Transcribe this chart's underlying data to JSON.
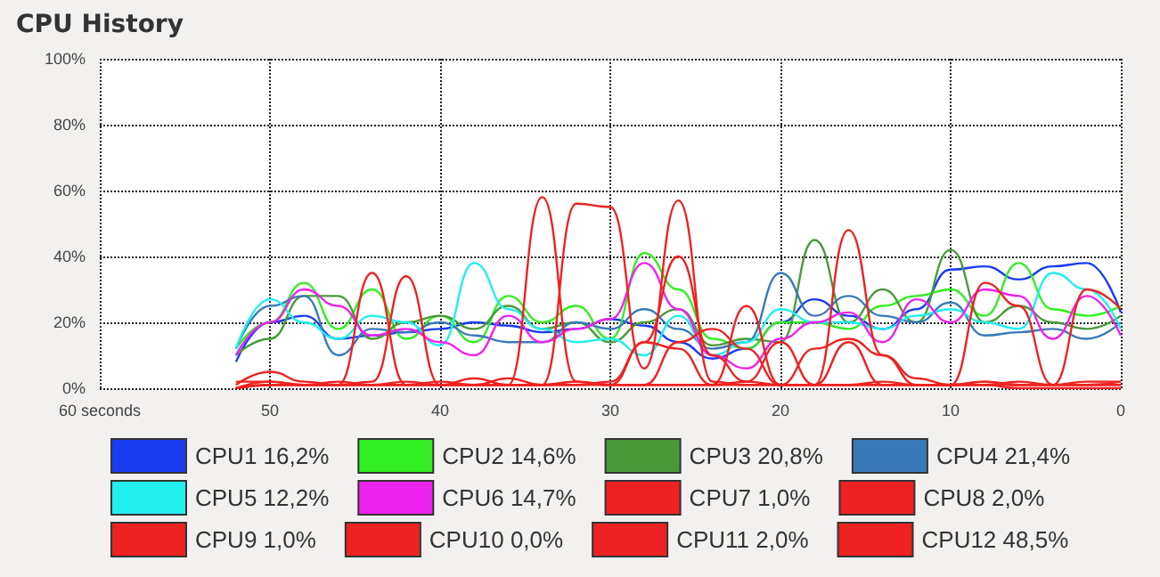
{
  "chart_data": {
    "type": "line",
    "title": "CPU History",
    "x": [
      52,
      50,
      48,
      46,
      44,
      42,
      40,
      38,
      36,
      34,
      32,
      30,
      28,
      26,
      24,
      22,
      20,
      18,
      16,
      14,
      12,
      10,
      8,
      6,
      4,
      2,
      0
    ],
    "xlim": [
      60,
      0
    ],
    "xticks": [
      {
        "value": 60,
        "label": "60 seconds"
      },
      50,
      40,
      30,
      20,
      10,
      0
    ],
    "ylim": [
      0,
      100
    ],
    "yticks": [
      {
        "value": 0,
        "label": "0%"
      },
      {
        "value": 20,
        "label": "20%"
      },
      {
        "value": 40,
        "label": "40%"
      },
      {
        "value": 60,
        "label": "60%"
      },
      {
        "value": 80,
        "label": "80%"
      },
      {
        "value": 100,
        "label": "100%"
      }
    ],
    "grid": true,
    "legend": "bottom",
    "marker": "none",
    "line_style": "solid",
    "series": [
      {
        "name": "CPU1 16,2%",
        "color": "#1a3cf0",
        "values": [
          8,
          20,
          22,
          15,
          16,
          17,
          18,
          20,
          19,
          17,
          18,
          21,
          19,
          14,
          9,
          12,
          20,
          27,
          22,
          18,
          24,
          36,
          37,
          33,
          37,
          38,
          23
        ]
      },
      {
        "name": "CPU2 14,6%",
        "color": "#33ee22",
        "values": [
          12,
          20,
          32,
          18,
          30,
          15,
          22,
          14,
          28,
          20,
          25,
          15,
          41,
          30,
          15,
          12,
          20,
          20,
          18,
          25,
          28,
          30,
          22,
          38,
          24,
          22,
          25
        ]
      },
      {
        "name": "CPU3 20,8%",
        "color": "#4a9a3a",
        "values": [
          10,
          15,
          28,
          28,
          15,
          20,
          22,
          18,
          25,
          18,
          20,
          14,
          20,
          24,
          13,
          15,
          14,
          45,
          20,
          30,
          20,
          42,
          20,
          25,
          20,
          18,
          22
        ]
      },
      {
        "name": "CPU4 21,4%",
        "color": "#3a7ab8",
        "values": [
          12,
          25,
          28,
          10,
          18,
          17,
          20,
          16,
          14,
          14,
          20,
          18,
          24,
          18,
          12,
          14,
          35,
          22,
          28,
          22,
          20,
          26,
          16,
          17,
          18,
          15,
          20
        ]
      },
      {
        "name": "CPU5 12,2%",
        "color": "#22eeee",
        "values": [
          12,
          27,
          20,
          15,
          22,
          20,
          13,
          38,
          24,
          18,
          14,
          15,
          10,
          22,
          10,
          14,
          24,
          20,
          20,
          18,
          22,
          24,
          20,
          18,
          35,
          30,
          18
        ]
      },
      {
        "name": "CPU6 14,7%",
        "color": "#ee22ee",
        "values": [
          10,
          20,
          30,
          25,
          16,
          18,
          14,
          10,
          22,
          14,
          18,
          21,
          38,
          24,
          10,
          6,
          15,
          20,
          23,
          14,
          27,
          20,
          30,
          28,
          15,
          28,
          16
        ]
      },
      {
        "name": "CPU7 1,0%",
        "color": "#ee2222",
        "values": [
          1,
          5,
          2,
          1,
          35,
          1,
          1,
          1,
          1,
          1,
          2,
          1,
          1,
          1,
          1,
          2,
          1,
          1,
          1,
          1,
          1,
          1,
          1,
          2,
          1,
          1,
          1
        ]
      },
      {
        "name": "CPU8 2,0%",
        "color": "#ee2222",
        "values": [
          0,
          1,
          1,
          1,
          2,
          34,
          1,
          1,
          1,
          58,
          2,
          1,
          1,
          1,
          1,
          1,
          1,
          1,
          1,
          2,
          1,
          1,
          1,
          1,
          1,
          2,
          2
        ]
      },
      {
        "name": "CPU9 1,0%",
        "color": "#ee2222",
        "values": [
          0,
          2,
          1,
          1,
          1,
          1,
          1,
          1,
          3,
          1,
          56,
          55,
          6,
          57,
          2,
          1,
          1,
          1,
          1,
          1,
          1,
          1,
          2,
          1,
          1,
          1,
          1
        ]
      },
      {
        "name": "CPU10 0,0%",
        "color": "#ee2222",
        "values": [
          0,
          1,
          1,
          1,
          1,
          1,
          2,
          1,
          1,
          1,
          1,
          1,
          14,
          12,
          1,
          25,
          1,
          1,
          14,
          1,
          1,
          1,
          1,
          0,
          0,
          0,
          0
        ]
      },
      {
        "name": "CPU11 2,0%",
        "color": "#ee2222",
        "values": [
          0,
          1,
          1,
          1,
          1,
          2,
          1,
          3,
          1,
          1,
          2,
          1,
          1,
          14,
          18,
          12,
          1,
          12,
          15,
          10,
          3,
          1,
          2,
          1,
          1,
          1,
          2
        ]
      },
      {
        "name": "CPU12 48,5%",
        "color": "#ee2222",
        "values": [
          2,
          2,
          1,
          2,
          1,
          1,
          1,
          1,
          1,
          1,
          1,
          2,
          14,
          40,
          10,
          2,
          14,
          1,
          48,
          10,
          1,
          1,
          32,
          25,
          1,
          30,
          24
        ]
      }
    ]
  }
}
